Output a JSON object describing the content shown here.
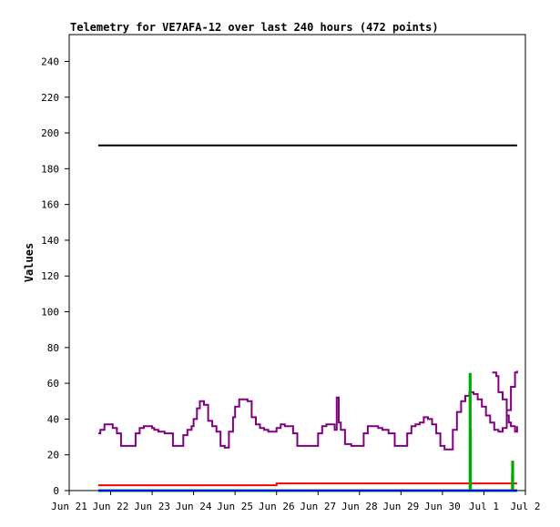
{
  "chart_data": {
    "type": "line",
    "title": "Telemetry for VE7AFA-12 over last 240 hours (472 points)",
    "xlabel": "",
    "ylabel": "Values",
    "ylim": [
      0,
      255
    ],
    "yticks": [
      0,
      20,
      40,
      60,
      80,
      100,
      120,
      140,
      160,
      180,
      200,
      220,
      240
    ],
    "xlim": [
      0,
      11
    ],
    "xtick_positions": [
      0,
      1,
      2,
      3,
      4,
      5,
      6,
      7,
      8,
      9,
      10,
      11
    ],
    "xtick_labels": [
      "Jun 21",
      "Jun 22",
      "Jun 23",
      "Jun 24",
      "Jun 25",
      "Jun 26",
      "Jun 27",
      "Jun 28",
      "Jun 29",
      "Jun 30",
      "Jul 1",
      "Jul 2"
    ],
    "x_unit": "days since Jun 21 00:00",
    "legend": "none",
    "grid": false,
    "series": [
      {
        "color": "#000000",
        "x": [
          0.7,
          10.8
        ],
        "y": [
          193,
          193
        ]
      },
      {
        "color": "#800080",
        "x": [
          0.7,
          0.75,
          0.85,
          0.95,
          1.05,
          1.15,
          1.25,
          1.3,
          1.45,
          1.55,
          1.6,
          1.7,
          1.8,
          1.9,
          2.0,
          2.05,
          2.15,
          2.3,
          2.4,
          2.5,
          2.6,
          2.65,
          2.75,
          2.85,
          2.95,
          3.0,
          3.08,
          3.15,
          3.25,
          3.35,
          3.45,
          3.55,
          3.65,
          3.75,
          3.85,
          3.95,
          4.0,
          4.1,
          4.2,
          4.3,
          4.4,
          4.5,
          4.6,
          4.7,
          4.8,
          5.0,
          5.1,
          5.2,
          5.3,
          5.4,
          5.5,
          5.6,
          5.7,
          5.8,
          6.0,
          6.1,
          6.2,
          6.3,
          6.35,
          6.4,
          6.45,
          6.5,
          6.55,
          6.6,
          6.65,
          6.8,
          6.9,
          6.95,
          7.1,
          7.2,
          7.3,
          7.45,
          7.55,
          7.6,
          7.7,
          7.85,
          7.95,
          8.05,
          8.15,
          8.25,
          8.35,
          8.45,
          8.55,
          8.65,
          8.75,
          8.85,
          8.95,
          9.05,
          9.15,
          9.25,
          9.35,
          9.45,
          9.55,
          9.65,
          9.75,
          9.85,
          9.95,
          10.05,
          10.15,
          10.25,
          10.35,
          10.45,
          10.55,
          10.65,
          10.75,
          10.8
        ],
        "y": [
          32,
          34,
          37,
          37,
          35,
          32,
          25,
          25,
          25,
          25,
          32,
          35,
          36,
          36,
          35,
          34,
          33,
          32,
          32,
          25,
          25,
          25,
          31,
          34,
          36,
          40,
          46,
          50,
          48,
          39,
          36,
          33,
          25,
          24,
          33,
          41,
          47,
          51,
          51,
          50,
          41,
          37,
          35,
          34,
          33,
          35,
          37,
          36,
          36,
          32,
          25,
          25,
          25,
          25,
          32,
          36,
          37,
          37,
          37,
          34,
          52,
          38,
          34,
          34,
          26,
          25,
          25,
          25,
          32,
          36,
          36,
          35,
          34,
          34,
          32,
          25,
          25,
          25,
          32,
          36,
          37,
          38,
          41,
          40,
          37,
          32,
          25,
          23,
          23,
          34,
          44,
          50,
          53,
          55,
          54,
          51,
          47,
          42,
          38,
          34,
          33,
          35,
          45,
          58,
          66,
          67
        ],
        "tail_x": [
          10.2,
          10.3,
          10.35,
          10.45,
          10.55,
          10.6,
          10.65,
          10.75,
          10.8
        ],
        "tail_y": [
          66,
          64,
          55,
          51,
          42,
          38,
          36,
          33,
          36
        ]
      },
      {
        "color": "#ff0000",
        "x": [
          0.7,
          1.0,
          1.3,
          1.6,
          1.9,
          2.2,
          2.5,
          2.8,
          3.1,
          3.4,
          3.7,
          4.0,
          4.3,
          4.6,
          4.9,
          5.0,
          5.3,
          5.6,
          5.9,
          6.2,
          6.5,
          6.8,
          7.1,
          7.4,
          7.7,
          8.0,
          8.3,
          8.6,
          8.9,
          9.2,
          9.5,
          9.8,
          10.1,
          10.4,
          10.8
        ],
        "y": [
          3,
          3,
          3,
          3,
          3,
          3,
          3,
          3,
          3,
          3,
          3,
          3,
          3,
          3,
          3,
          4,
          4,
          4,
          4,
          4,
          4,
          4,
          4,
          4,
          4,
          4,
          4,
          4,
          4,
          4,
          4,
          4,
          4,
          4,
          4
        ]
      },
      {
        "color": "#00aa00",
        "x": [
          0.7,
          9.66,
          9.665,
          9.67,
          9.675,
          9.68,
          10.68,
          10.685,
          10.69,
          10.695,
          10.7,
          10.8
        ],
        "y": [
          0,
          0,
          65,
          34,
          0,
          0,
          0,
          8,
          16,
          0,
          0,
          0
        ]
      },
      {
        "color": "#0000ff",
        "x": [
          0.7,
          10.8
        ],
        "y": [
          0,
          0
        ]
      }
    ]
  }
}
